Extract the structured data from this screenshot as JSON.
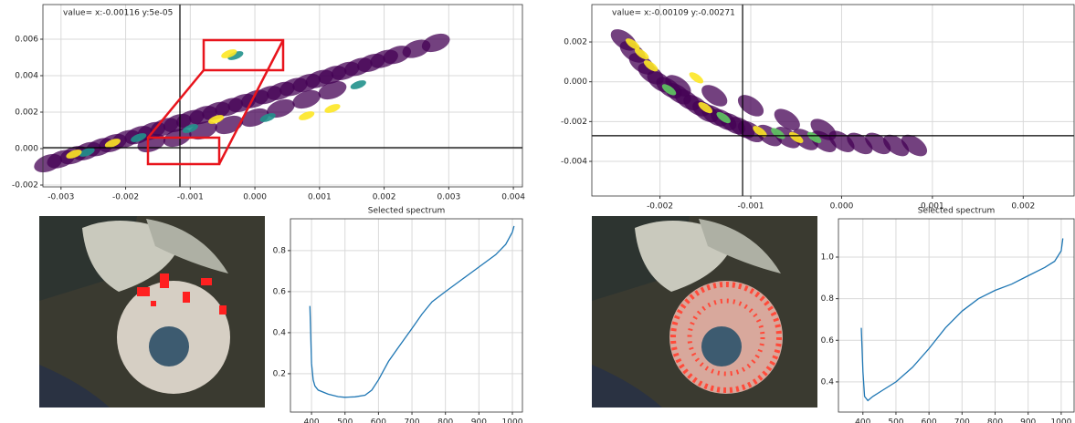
{
  "chart_data": [
    {
      "type": "scatter",
      "annotation": "value= x:-0.00116 y:5e-05",
      "crosshair": {
        "x": -0.00116,
        "y": 5e-05
      },
      "xlim": [
        -0.00328,
        0.00414
      ],
      "ylim": [
        -0.0021,
        0.0079
      ],
      "xticks": [
        -0.003,
        -0.002,
        -0.001,
        {
          "value": 0,
          "label": "0.000"
        },
        0.001,
        0.002,
        0.003,
        0.004
      ],
      "yticks": [
        -0.002,
        {
          "value": 0,
          "label": "0.000"
        },
        0.002,
        0.004,
        0.006
      ],
      "grid": true,
      "series": [
        {
          "color": "#440154",
          "x": [
            -0.0032,
            -0.003,
            -0.0028,
            -0.0026,
            -0.0024,
            -0.0022,
            -0.002,
            -0.0018,
            -0.0016,
            -0.0014,
            -0.0012,
            -0.001,
            -0.0008,
            -0.0006,
            -0.0004,
            -0.0002,
            0,
            0.0002,
            0.0004,
            0.0006,
            0.0008,
            0.001,
            0.0012,
            0.0014,
            0.0016,
            0.0018,
            0.002,
            0.0022,
            0.0025,
            0.0028,
            -0.0016,
            -0.0012,
            -0.0008,
            -0.0004,
            0,
            0.0004,
            0.0008,
            0.0012
          ],
          "values": [
            -0.0008,
            -0.00058,
            -0.00036,
            -0.00014,
            8e-05,
            0.0003,
            0.00052,
            0.00074,
            0.00096,
            0.00118,
            0.0014,
            0.00162,
            0.00184,
            0.00206,
            0.00228,
            0.0025,
            0.00272,
            0.00294,
            0.00316,
            0.00338,
            0.0036,
            0.00382,
            0.00404,
            0.00426,
            0.00448,
            0.0047,
            0.00492,
            0.00514,
            0.00547,
            0.0058,
            0.0003,
            0.0006,
            0.001,
            0.0013,
            0.0017,
            0.0022,
            0.0027,
            0.0032
          ]
        },
        {
          "color": "#21918c",
          "x": [
            -0.0026,
            -0.0018,
            -0.001,
            0.0002,
            0.0016,
            -0.0003
          ],
          "values": [
            -0.0002,
            0.0006,
            0.0011,
            0.0017,
            0.0035,
            0.0051
          ]
        },
        {
          "color": "#fde725",
          "x": [
            -0.0028,
            -0.0022,
            -0.0006,
            0.0008,
            0.0012,
            -0.0004
          ],
          "values": [
            -0.0003,
            0.0003,
            0.0016,
            0.0018,
            0.0022,
            0.0052
          ]
        }
      ]
    },
    {
      "type": "line",
      "title": "Selected spectrum",
      "color": "#1f77b4",
      "x": [
        395,
        400,
        405,
        410,
        420,
        450,
        480,
        500,
        530,
        560,
        580,
        600,
        630,
        660,
        700,
        730,
        760,
        800,
        850,
        900,
        950,
        980,
        1000,
        1005
      ],
      "values": [
        0.53,
        0.25,
        0.17,
        0.14,
        0.12,
        0.1,
        0.088,
        0.085,
        0.087,
        0.095,
        0.12,
        0.17,
        0.26,
        0.33,
        0.42,
        0.49,
        0.55,
        0.6,
        0.66,
        0.72,
        0.78,
        0.83,
        0.89,
        0.92
      ],
      "xlim": [
        337,
        1030
      ],
      "ylim": [
        0.013,
        0.955
      ],
      "xticks": [
        400,
        500,
        600,
        700,
        800,
        900,
        1000
      ],
      "yticks": [
        0.2,
        0.4,
        0.6,
        0.8
      ],
      "grid": true
    },
    {
      "type": "scatter",
      "annotation": "value= x:-0.00109 y:-0.00271",
      "crosshair": {
        "x": -0.00109,
        "y": -0.00271
      },
      "xlim": [
        -0.00275,
        0.00256
      ],
      "ylim": [
        -0.00574,
        0.00388
      ],
      "xticks": [
        -0.002,
        -0.001,
        {
          "value": 0,
          "label": "0.000"
        },
        0.001,
        0.002
      ],
      "yticks": [
        -0.004,
        -0.002,
        {
          "value": 0,
          "label": "0.000"
        },
        0.002
      ],
      "grid": true,
      "series": [
        {
          "color": "#440154",
          "x": [
            -0.0024,
            -0.0023,
            -0.0022,
            -0.0021,
            -0.002,
            -0.0019,
            -0.0018,
            -0.0017,
            -0.0016,
            -0.0015,
            -0.0014,
            -0.0013,
            -0.0012,
            -0.0011,
            -0.001,
            -0.0008,
            -0.0006,
            -0.0004,
            -0.0002,
            0,
            0.0002,
            0.0004,
            0.0006,
            0.0008,
            -0.0018,
            -0.0014,
            -0.001,
            -0.0006,
            -0.0002
          ],
          "values": [
            0.0021,
            0.0015,
            0.0009,
            0.0004,
            0,
            -0.0003,
            -0.0006,
            -0.0009,
            -0.0012,
            -0.0015,
            -0.0017,
            -0.0019,
            -0.0021,
            -0.0023,
            -0.0025,
            -0.0027,
            -0.0028,
            -0.0029,
            -0.003,
            -0.003,
            -0.0031,
            -0.0031,
            -0.0032,
            -0.0032,
            -0.0002,
            -0.0007,
            -0.0012,
            -0.0019,
            -0.0024
          ]
        },
        {
          "color": "#5ec962",
          "x": [
            -0.0019,
            -0.0013,
            -0.0007,
            -0.0003
          ],
          "values": [
            -0.0004,
            -0.0018,
            -0.0026,
            -0.0028
          ]
        },
        {
          "color": "#fde725",
          "x": [
            -0.0023,
            -0.0022,
            -0.0021,
            -0.0016,
            -0.0015,
            -0.0009,
            -0.0005
          ],
          "values": [
            0.0019,
            0.0014,
            0.0008,
            0.0002,
            -0.0013,
            -0.0025,
            -0.0028
          ]
        }
      ]
    },
    {
      "type": "line",
      "title": "Selected spectrum",
      "color": "#1f77b4",
      "x": [
        395,
        400,
        405,
        415,
        430,
        460,
        500,
        550,
        600,
        650,
        700,
        750,
        800,
        850,
        900,
        950,
        980,
        1000,
        1005
      ],
      "values": [
        0.66,
        0.45,
        0.33,
        0.31,
        0.33,
        0.36,
        0.4,
        0.47,
        0.56,
        0.66,
        0.74,
        0.8,
        0.84,
        0.87,
        0.91,
        0.95,
        0.98,
        1.03,
        1.09
      ],
      "xlim": [
        326,
        1039
      ],
      "ylim": [
        0.255,
        1.184
      ],
      "xticks": [
        400,
        500,
        600,
        700,
        800,
        900,
        1000
      ],
      "yticks": [
        0.4,
        0.6,
        0.8,
        {
          "value": 1,
          "label": "1.0"
        }
      ],
      "grid": true
    }
  ]
}
